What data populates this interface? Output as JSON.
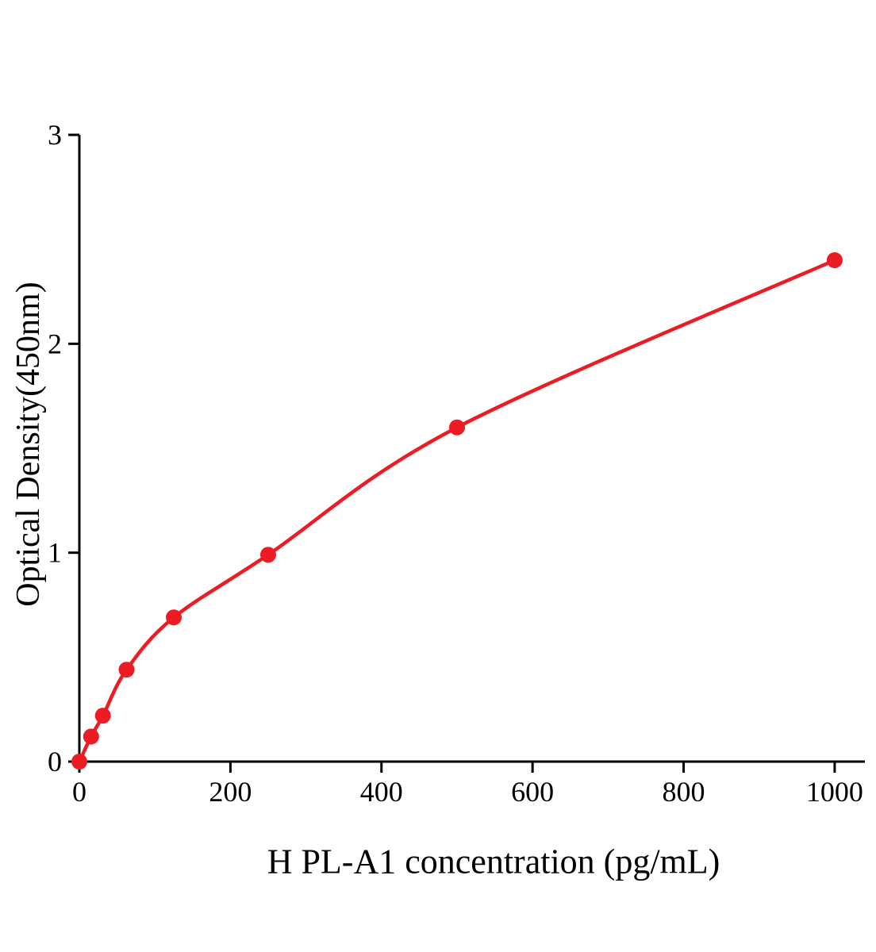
{
  "chart_data": {
    "type": "scatter",
    "title": "",
    "xlabel": "H PL-A1 concentration (pg/mL)",
    "ylabel": "Optical Density(450nm)",
    "x": [
      0,
      15.6,
      31.25,
      62.5,
      125,
      250,
      500,
      1000
    ],
    "y": [
      0,
      0.12,
      0.22,
      0.44,
      0.69,
      0.99,
      1.6,
      2.4
    ],
    "x_ticks": [
      0,
      200,
      400,
      600,
      800,
      1000
    ],
    "y_ticks": [
      0,
      1,
      2,
      3
    ],
    "xlim": [
      0,
      1040
    ],
    "ylim": [
      0,
      3
    ],
    "grid": false,
    "legend": "none",
    "curve_type": "smooth fitted curve through points",
    "line_color": "#ed1c24",
    "marker_color": "#ed1c24",
    "axis_color": "#000000",
    "background_color": "#ffffff"
  }
}
